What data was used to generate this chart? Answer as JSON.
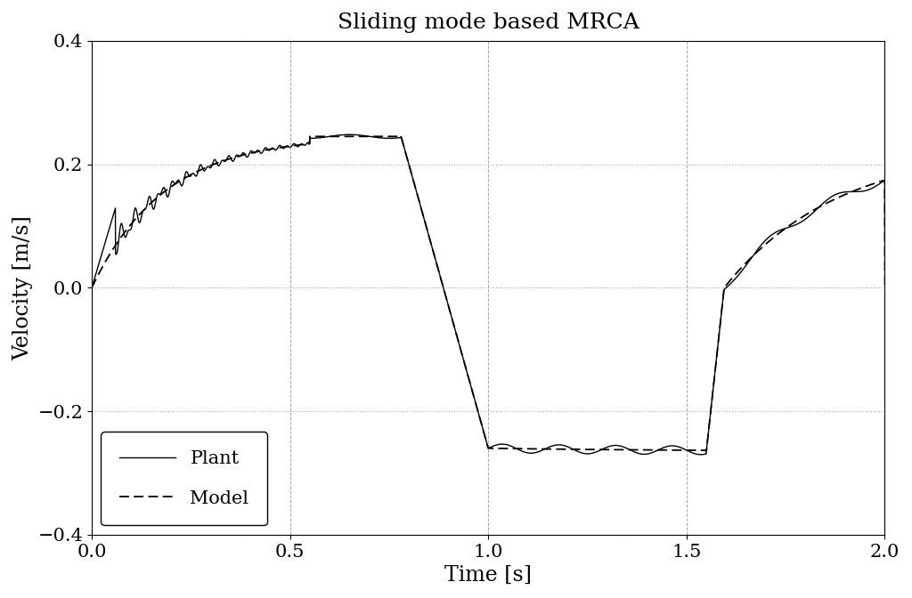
{
  "title": "Sliding mode based MRCA",
  "xlabel": "Time [s]",
  "ylabel": "Velocity [m/s]",
  "xlim": [
    0,
    2
  ],
  "ylim": [
    -0.4,
    0.4
  ],
  "xticks": [
    0,
    0.5,
    1.0,
    1.5,
    2.0
  ],
  "yticks": [
    -0.4,
    -0.2,
    0,
    0.2,
    0.4
  ],
  "legend_labels": [
    "Plant",
    "Model"
  ],
  "legend_loc": "lower left",
  "grid_color": "#aaaaaa",
  "line_color_plant": "#000000",
  "line_color_model": "#000000",
  "bg_color": "#ffffff",
  "title_fontsize": 18,
  "label_fontsize": 17,
  "tick_fontsize": 15,
  "legend_fontsize": 15
}
